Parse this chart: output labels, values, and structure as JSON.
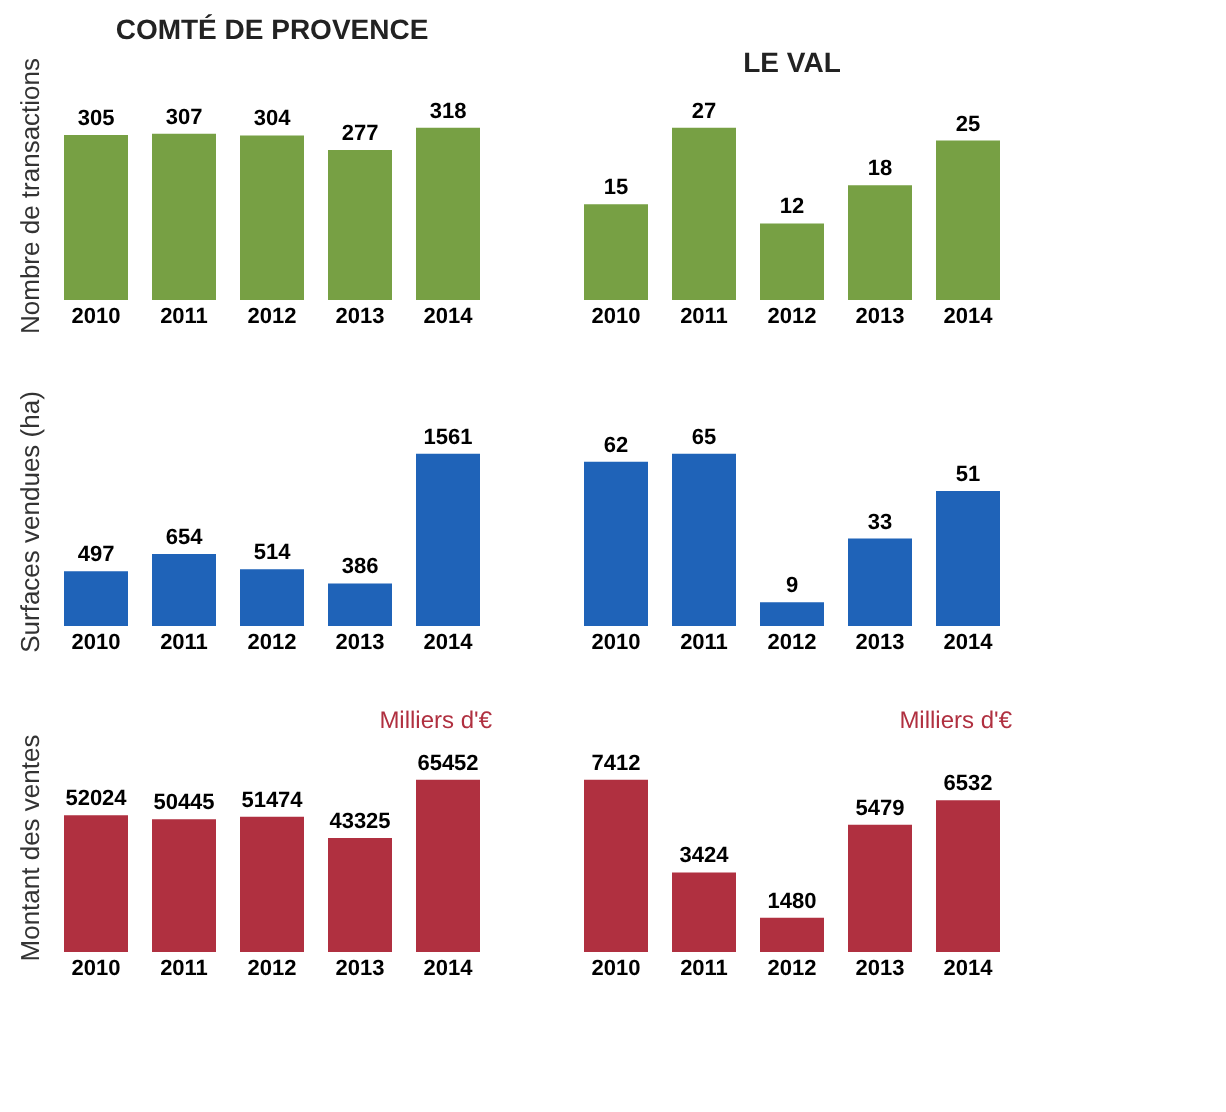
{
  "chart_data": [
    {
      "type": "bar",
      "title": "COMTÉ DE PROVENCE",
      "ylabel": "Nombre de transactions",
      "categories": [
        "2010",
        "2011",
        "2012",
        "2013",
        "2014"
      ],
      "values": [
        305,
        307,
        304,
        277,
        318
      ],
      "color": "#77a044",
      "data_labels": true,
      "tick_labels": "x"
    },
    {
      "type": "bar",
      "title": "LE VAL",
      "categories": [
        "2010",
        "2011",
        "2012",
        "2013",
        "2014"
      ],
      "values": [
        15,
        27,
        12,
        18,
        25
      ],
      "color": "#77a044",
      "data_labels": true,
      "tick_labels": "x"
    },
    {
      "type": "bar",
      "ylabel": "Surfaces vendues (ha)",
      "categories": [
        "2010",
        "2011",
        "2012",
        "2013",
        "2014"
      ],
      "values": [
        497,
        654,
        514,
        386,
        1561
      ],
      "color": "#1f63b8",
      "data_labels": true,
      "tick_labels": "x"
    },
    {
      "type": "bar",
      "categories": [
        "2010",
        "2011",
        "2012",
        "2013",
        "2014"
      ],
      "values": [
        62,
        65,
        9,
        33,
        51
      ],
      "color": "#1f63b8",
      "data_labels": true,
      "tick_labels": "x"
    },
    {
      "type": "bar",
      "ylabel": "Montant des ventes",
      "annotations": [
        "Milliers d'€"
      ],
      "categories": [
        "2010",
        "2011",
        "2012",
        "2013",
        "2014"
      ],
      "values": [
        52024,
        50445,
        51474,
        43325,
        65452
      ],
      "color": "#b03040",
      "data_labels": true,
      "tick_labels": "x"
    },
    {
      "type": "bar",
      "annotations": [
        "Milliers d'€"
      ],
      "categories": [
        "2010",
        "2011",
        "2012",
        "2013",
        "2014"
      ],
      "values": [
        7412,
        3424,
        1480,
        5479,
        6532
      ],
      "color": "#b03040",
      "data_labels": true,
      "tick_labels": "x"
    }
  ]
}
